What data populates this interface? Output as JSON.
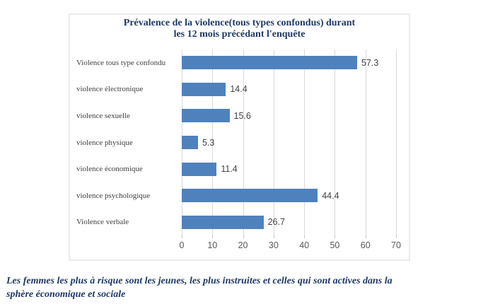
{
  "colors": {
    "accent_navy": "#1F3864",
    "bar_blue": "#4F81BD",
    "gridline_gray": "#D9D9D9",
    "tick_mark_gray": "#C3C3C3",
    "box_border_gray": "#EBEBEB",
    "category_label_gray": "#3F3F3F",
    "axis_label_gray": "#595959",
    "value_label_gray": "#404040"
  },
  "chart_data": {
    "type": "bar",
    "orientation": "horizontal",
    "title": "Prévalence de la violence(tous types confondus) durant les 12 mois précédant l'enquête",
    "title_lines": [
      "Prévalence de la violence(tous types confondus) durant",
      "les 12 mois précédant l'enquête"
    ],
    "categories": [
      "Violence tous type confondu",
      "violence électronique",
      "violence sexuelle",
      "violence physique",
      "violence économique",
      "violence psychologique",
      "Violence verbale"
    ],
    "values": [
      57.3,
      14.4,
      15.6,
      5.3,
      11.4,
      44.4,
      26.7
    ],
    "data_labels": [
      "57.3",
      "14.4",
      "15.6",
      "5.3",
      "11.4",
      "44.4",
      "26.7"
    ],
    "xlabel": "",
    "ylabel": "",
    "xlim": [
      0,
      70
    ],
    "xticks": [
      0,
      10,
      20,
      30,
      40,
      50,
      60,
      70
    ],
    "grid": "vertical",
    "legend": "none"
  },
  "caption": {
    "text": "Les femmes les plus à risque sont les jeunes, les plus instruites et celles qui sont actives dans la sphère économique et sociale",
    "lines": [
      "Les femmes les plus à risque sont les jeunes, les plus instruites et celles qui sont actives dans la",
      "sphère économique et sociale"
    ]
  }
}
